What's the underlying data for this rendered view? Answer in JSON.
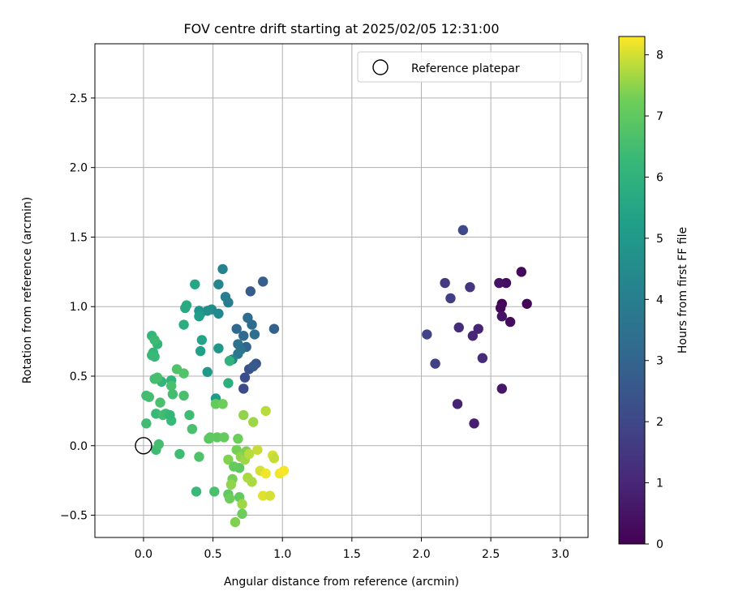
{
  "chart_data": {
    "type": "scatter",
    "title": "FOV centre drift starting at 2025/02/05 12:31:00",
    "xlabel": "Angular distance from reference (arcmin)",
    "ylabel": "Rotation from reference (arcmin)",
    "xlim": [
      -0.35,
      3.2
    ],
    "ylim": [
      -0.66,
      2.89
    ],
    "xticks": [
      0.0,
      0.5,
      1.0,
      1.5,
      2.0,
      2.5,
      3.0
    ],
    "xtick_labels": [
      "0.0",
      "0.5",
      "1.0",
      "1.5",
      "2.0",
      "2.5",
      "3.0"
    ],
    "yticks": [
      -0.5,
      0.0,
      0.5,
      1.0,
      1.5,
      2.0,
      2.5
    ],
    "ytick_labels": [
      "−0.5",
      "0.0",
      "0.5",
      "1.0",
      "1.5",
      "2.0",
      "2.5"
    ],
    "grid": true,
    "legend": {
      "position": "top-right",
      "entries": [
        {
          "label": "Reference platepar",
          "marker": "open-circle"
        }
      ]
    },
    "reference_point": {
      "x": 0.0,
      "y": 0.0
    },
    "colorbar": {
      "label": "Hours from first FF file",
      "colormap": "viridis",
      "range": [
        0,
        8.3
      ],
      "ticks": [
        0,
        1,
        2,
        3,
        4,
        5,
        6,
        7,
        8
      ],
      "tick_labels": [
        "0",
        "1",
        "2",
        "3",
        "4",
        "5",
        "6",
        "7",
        "8"
      ]
    },
    "points": [
      {
        "x": 2.58,
        "y": 1.02,
        "hours": 0.05
      },
      {
        "x": 2.76,
        "y": 1.02,
        "hours": 0.1
      },
      {
        "x": 2.57,
        "y": 0.99,
        "hours": 0.2
      },
      {
        "x": 2.64,
        "y": 0.89,
        "hours": 0.3
      },
      {
        "x": 2.72,
        "y": 1.25,
        "hours": 0.2
      },
      {
        "x": 2.61,
        "y": 1.17,
        "hours": 0.35
      },
      {
        "x": 2.56,
        "y": 1.17,
        "hours": 0.45
      },
      {
        "x": 2.58,
        "y": 0.93,
        "hours": 0.5
      },
      {
        "x": 2.58,
        "y": 0.41,
        "hours": 0.6
      },
      {
        "x": 2.38,
        "y": 0.16,
        "hours": 0.8
      },
      {
        "x": 2.26,
        "y": 0.3,
        "hours": 0.9
      },
      {
        "x": 2.41,
        "y": 0.84,
        "hours": 0.9
      },
      {
        "x": 2.37,
        "y": 0.79,
        "hours": 1.0
      },
      {
        "x": 2.44,
        "y": 0.63,
        "hours": 1.1
      },
      {
        "x": 2.27,
        "y": 0.85,
        "hours": 1.2
      },
      {
        "x": 2.35,
        "y": 1.14,
        "hours": 1.4
      },
      {
        "x": 2.17,
        "y": 1.17,
        "hours": 1.6
      },
      {
        "x": 2.21,
        "y": 1.06,
        "hours": 1.7
      },
      {
        "x": 2.1,
        "y": 0.59,
        "hours": 1.8
      },
      {
        "x": 2.04,
        "y": 0.8,
        "hours": 1.9
      },
      {
        "x": 2.3,
        "y": 1.55,
        "hours": 2.0
      },
      {
        "x": 0.72,
        "y": 0.41,
        "hours": 2.1
      },
      {
        "x": 0.73,
        "y": 0.49,
        "hours": 2.2
      },
      {
        "x": 0.76,
        "y": 0.55,
        "hours": 2.3
      },
      {
        "x": 0.81,
        "y": 0.59,
        "hours": 2.5
      },
      {
        "x": 0.79,
        "y": 0.57,
        "hours": 2.6
      },
      {
        "x": 0.77,
        "y": 1.11,
        "hours": 2.7
      },
      {
        "x": 0.86,
        "y": 1.18,
        "hours": 2.8
      },
      {
        "x": 0.94,
        "y": 0.84,
        "hours": 2.9
      },
      {
        "x": 0.74,
        "y": 0.71,
        "hours": 3.0
      },
      {
        "x": 0.67,
        "y": 0.84,
        "hours": 3.1
      },
      {
        "x": 0.72,
        "y": 0.79,
        "hours": 3.2
      },
      {
        "x": 0.78,
        "y": 0.87,
        "hours": 3.3
      },
      {
        "x": 0.8,
        "y": 0.8,
        "hours": 3.4
      },
      {
        "x": 0.75,
        "y": 0.92,
        "hours": 3.3
      },
      {
        "x": 0.68,
        "y": 0.73,
        "hours": 3.5
      },
      {
        "x": 0.7,
        "y": 0.69,
        "hours": 3.6
      },
      {
        "x": 0.68,
        "y": 0.66,
        "hours": 3.7
      },
      {
        "x": 0.62,
        "y": 0.61,
        "hours": 3.8
      },
      {
        "x": 0.61,
        "y": 1.03,
        "hours": 3.9
      },
      {
        "x": 0.59,
        "y": 1.07,
        "hours": 4.0
      },
      {
        "x": 0.64,
        "y": 0.62,
        "hours": 4.1
      },
      {
        "x": 0.57,
        "y": 1.27,
        "hours": 4.2
      },
      {
        "x": 0.54,
        "y": 1.16,
        "hours": 4.3
      },
      {
        "x": 0.54,
        "y": 0.95,
        "hours": 4.4
      },
      {
        "x": 0.49,
        "y": 0.98,
        "hours": 4.5
      },
      {
        "x": 0.46,
        "y": 0.97,
        "hours": 4.6
      },
      {
        "x": 0.41,
        "y": 0.95,
        "hours": 4.7
      },
      {
        "x": 0.4,
        "y": 0.97,
        "hours": 4.8
      },
      {
        "x": 0.54,
        "y": 0.7,
        "hours": 4.9
      },
      {
        "x": 0.46,
        "y": 0.53,
        "hours": 5.0
      },
      {
        "x": 0.52,
        "y": 0.34,
        "hours": 5.1
      },
      {
        "x": 0.4,
        "y": 0.93,
        "hours": 5.2
      },
      {
        "x": 0.41,
        "y": 0.68,
        "hours": 5.3
      },
      {
        "x": 0.42,
        "y": 0.76,
        "hours": 5.4
      },
      {
        "x": 0.37,
        "y": 1.16,
        "hours": 5.5
      },
      {
        "x": 0.3,
        "y": 0.99,
        "hours": 5.6
      },
      {
        "x": 0.31,
        "y": 1.01,
        "hours": 5.7
      },
      {
        "x": 0.29,
        "y": 0.87,
        "hours": 5.8
      },
      {
        "x": 0.61,
        "y": 0.45,
        "hours": 5.9
      },
      {
        "x": 0.62,
        "y": 0.61,
        "hours": 6.0
      },
      {
        "x": 0.2,
        "y": 0.47,
        "hours": 6.05
      },
      {
        "x": 0.13,
        "y": 0.46,
        "hours": 6.1
      },
      {
        "x": 0.1,
        "y": 0.73,
        "hours": 6.15
      },
      {
        "x": 0.07,
        "y": 0.67,
        "hours": 6.2
      },
      {
        "x": 0.08,
        "y": 0.64,
        "hours": 6.25
      },
      {
        "x": 0.06,
        "y": 0.65,
        "hours": 6.3
      },
      {
        "x": 0.06,
        "y": 0.79,
        "hours": 6.2
      },
      {
        "x": 0.08,
        "y": 0.76,
        "hours": 6.35
      },
      {
        "x": 0.02,
        "y": 0.16,
        "hours": 6.4
      },
      {
        "x": 0.02,
        "y": 0.36,
        "hours": 6.45
      },
      {
        "x": 0.04,
        "y": 0.35,
        "hours": 6.5
      },
      {
        "x": 0.09,
        "y": -0.03,
        "hours": 6.4
      },
      {
        "x": 0.11,
        "y": 0.01,
        "hours": 6.5
      },
      {
        "x": 0.09,
        "y": 0.23,
        "hours": 6.3
      },
      {
        "x": 0.08,
        "y": 0.48,
        "hours": 6.5
      },
      {
        "x": 0.1,
        "y": 0.49,
        "hours": 6.55
      },
      {
        "x": 0.12,
        "y": 0.31,
        "hours": 6.6
      },
      {
        "x": 0.14,
        "y": 0.22,
        "hours": 6.55
      },
      {
        "x": 0.16,
        "y": 0.23,
        "hours": 6.4
      },
      {
        "x": 0.2,
        "y": 0.18,
        "hours": 6.3
      },
      {
        "x": 0.19,
        "y": 0.22,
        "hours": 6.2
      },
      {
        "x": 0.2,
        "y": 0.43,
        "hours": 6.6
      },
      {
        "x": 0.21,
        "y": 0.37,
        "hours": 6.5
      },
      {
        "x": 0.24,
        "y": 0.55,
        "hours": 6.7
      },
      {
        "x": 0.26,
        "y": -0.06,
        "hours": 6.4
      },
      {
        "x": 0.29,
        "y": 0.52,
        "hours": 6.75
      },
      {
        "x": 0.29,
        "y": 0.36,
        "hours": 6.6
      },
      {
        "x": 0.33,
        "y": 0.22,
        "hours": 6.4
      },
      {
        "x": 0.35,
        "y": 0.12,
        "hours": 6.6
      },
      {
        "x": 0.4,
        "y": -0.08,
        "hours": 6.7
      },
      {
        "x": 0.38,
        "y": -0.33,
        "hours": 6.3
      },
      {
        "x": 0.47,
        "y": 0.05,
        "hours": 6.9
      },
      {
        "x": 0.48,
        "y": 0.06,
        "hours": 6.95
      },
      {
        "x": 0.51,
        "y": -0.33,
        "hours": 6.6
      },
      {
        "x": 0.53,
        "y": 0.06,
        "hours": 7.0
      },
      {
        "x": 0.52,
        "y": 0.3,
        "hours": 7.1
      },
      {
        "x": 0.57,
        "y": 0.3,
        "hours": 7.2
      },
      {
        "x": 0.58,
        "y": 0.06,
        "hours": 7.1
      },
      {
        "x": 0.61,
        "y": -0.1,
        "hours": 7.4
      },
      {
        "x": 0.61,
        "y": -0.35,
        "hours": 7.0
      },
      {
        "x": 0.62,
        "y": -0.38,
        "hours": 7.2
      },
      {
        "x": 0.64,
        "y": -0.24,
        "hours": 7.3
      },
      {
        "x": 0.66,
        "y": -0.55,
        "hours": 7.4
      },
      {
        "x": 0.67,
        "y": -0.03,
        "hours": 7.3
      },
      {
        "x": 0.68,
        "y": 0.05,
        "hours": 7.2
      },
      {
        "x": 0.69,
        "y": -0.16,
        "hours": 7.0
      },
      {
        "x": 0.7,
        "y": -0.08,
        "hours": 7.5
      },
      {
        "x": 0.69,
        "y": -0.37,
        "hours": 7.1
      },
      {
        "x": 0.71,
        "y": -0.42,
        "hours": 7.6
      },
      {
        "x": 0.71,
        "y": -0.49,
        "hours": 7.2
      },
      {
        "x": 0.72,
        "y": 0.22,
        "hours": 7.5
      },
      {
        "x": 0.73,
        "y": -0.1,
        "hours": 7.6
      },
      {
        "x": 0.74,
        "y": -0.04,
        "hours": 7.4
      },
      {
        "x": 0.75,
        "y": -0.23,
        "hours": 7.7
      },
      {
        "x": 0.76,
        "y": -0.06,
        "hours": 7.8
      },
      {
        "x": 0.78,
        "y": -0.26,
        "hours": 7.7
      },
      {
        "x": 0.79,
        "y": 0.17,
        "hours": 7.6
      },
      {
        "x": 0.82,
        "y": -0.03,
        "hours": 7.9
      },
      {
        "x": 0.84,
        "y": -0.18,
        "hours": 8.0
      },
      {
        "x": 0.86,
        "y": -0.36,
        "hours": 8.1
      },
      {
        "x": 0.88,
        "y": -0.2,
        "hours": 8.2
      },
      {
        "x": 0.88,
        "y": 0.25,
        "hours": 7.8
      },
      {
        "x": 0.91,
        "y": -0.36,
        "hours": 8.0
      },
      {
        "x": 0.93,
        "y": -0.07,
        "hours": 8.0
      },
      {
        "x": 0.94,
        "y": -0.09,
        "hours": 7.9
      },
      {
        "x": 0.98,
        "y": -0.2,
        "hours": 8.2
      },
      {
        "x": 1.01,
        "y": -0.18,
        "hours": 8.25
      },
      {
        "x": 0.65,
        "y": -0.15,
        "hours": 7.1
      },
      {
        "x": 0.63,
        "y": -0.28,
        "hours": 7.5
      }
    ]
  }
}
